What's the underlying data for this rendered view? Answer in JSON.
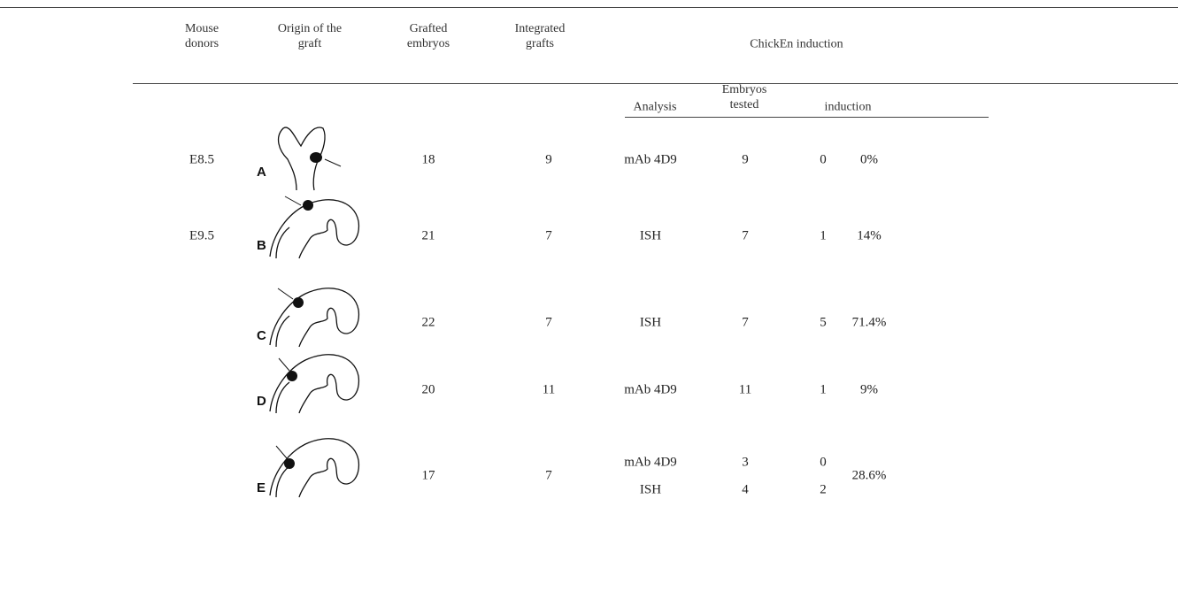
{
  "header": {
    "columns": [
      "Mouse donors",
      "Origin of the graft",
      "Grafted embryos",
      "Integrated grafts",
      "ChickEn induction"
    ],
    "subcolumns": [
      "Analysis",
      "Embryos tested",
      "induction"
    ]
  },
  "rows": [
    {
      "donor": "E8.5",
      "graft": "A",
      "grafted": "18",
      "integrated": "9",
      "analyses": [
        {
          "method": "mAb 4D9",
          "tested": "9",
          "induced": "0"
        }
      ],
      "percent": "0%"
    },
    {
      "donor": "E9.5",
      "graft": "B",
      "grafted": "21",
      "integrated": "7",
      "analyses": [
        {
          "method": "ISH",
          "tested": "7",
          "induced": "1"
        }
      ],
      "percent": "14%"
    },
    {
      "donor": null,
      "graft": "C",
      "grafted": "22",
      "integrated": "7",
      "analyses": [
        {
          "method": "ISH",
          "tested": "7",
          "induced": "5"
        }
      ],
      "percent": "71.4%"
    },
    {
      "donor": null,
      "graft": "D",
      "grafted": "20",
      "integrated": "11",
      "analyses": [
        {
          "method": "mAb 4D9",
          "tested": "11",
          "induced": "1"
        }
      ],
      "percent": "9%"
    },
    {
      "donor": null,
      "graft": "E",
      "grafted": "17",
      "integrated": "7",
      "analyses": [
        {
          "method": "mAb 4D9",
          "tested": "3",
          "induced": "0"
        },
        {
          "method": "ISH",
          "tested": "4",
          "induced": "2"
        }
      ],
      "percent": "28.6%"
    }
  ]
}
